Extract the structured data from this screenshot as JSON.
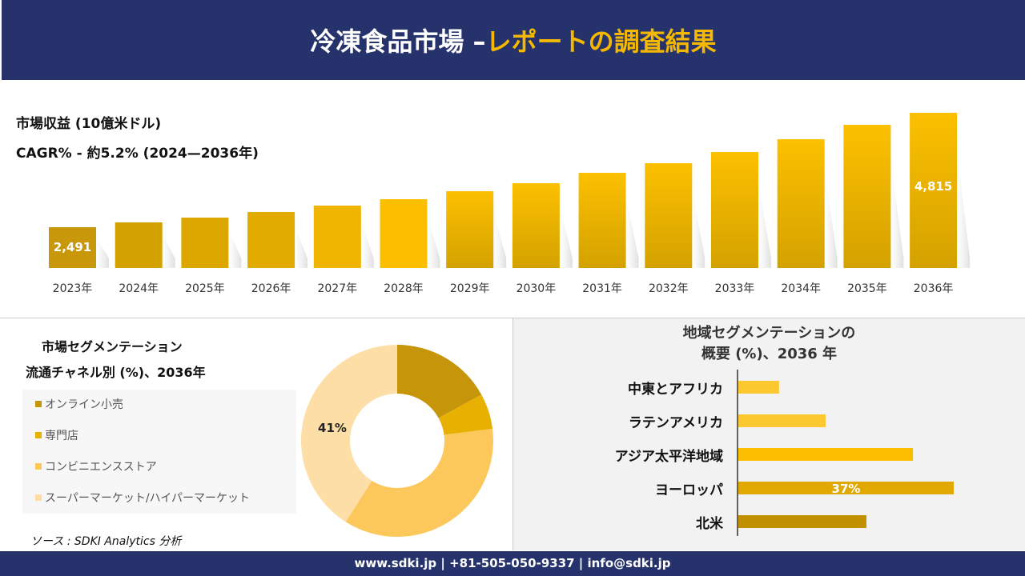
{
  "header": {
    "title_main": "冷凍食品市場 –",
    "title_accent": "レポートの調査結果"
  },
  "colors": {
    "header_bg": "#26326b",
    "accent": "#f5b800"
  },
  "chart_data": [
    {
      "type": "bar",
      "title": "市場収益 (10億米ドル)",
      "subtitle": "CAGR% - 約5.2% (2024—2036年)",
      "categories": [
        "2023年",
        "2024年",
        "2025年",
        "2026年",
        "2027年",
        "2028年",
        "2029年",
        "2030年",
        "2031年",
        "2032年",
        "2033年",
        "2034年",
        "2035年",
        "2036年"
      ],
      "values": [
        2491,
        2589,
        2686,
        2800,
        2930,
        3060,
        3222,
        3385,
        3596,
        3791,
        4018,
        4278,
        4571,
        4815
      ],
      "data_labels": {
        "0": "2,491",
        "13": "4,815"
      },
      "grid": false
    },
    {
      "type": "pie",
      "subtype": "donut",
      "title_line1": "市場セグメンテーション",
      "title_line2": "流通チャネル別 (%)、2036年",
      "categories": [
        "オンライン小売",
        "専門店",
        "コンビニエンスストア",
        "スーパーマーケット/ハイパーマーケット"
      ],
      "values": [
        17,
        6,
        36,
        41
      ],
      "colors": [
        "#c6950a",
        "#e8b000",
        "#fcc85c",
        "#fddea6"
      ],
      "data_labels": {
        "3": "41%"
      },
      "legend": "left"
    },
    {
      "type": "bar",
      "orientation": "horizontal",
      "title_line1": "地域セグメンテーションの",
      "title_line2": "概要 (%)、2036 年",
      "categories": [
        "中東とアフリカ",
        "ラテンアメリカ",
        "アジア太平洋地域",
        "ヨーロッパ",
        "北米"
      ],
      "values": [
        7,
        15,
        30,
        37,
        22
      ],
      "colors": [
        "#fcc830",
        "#fcc830",
        "#fcbe00",
        "#e0a800",
        "#c09000"
      ],
      "data_labels": {
        "3": "37%"
      }
    }
  ],
  "source": "ソース : SDKI Analytics 分析",
  "footer": "www.sdki.jp | +81-505-050-9337 | info@sdki.jp"
}
